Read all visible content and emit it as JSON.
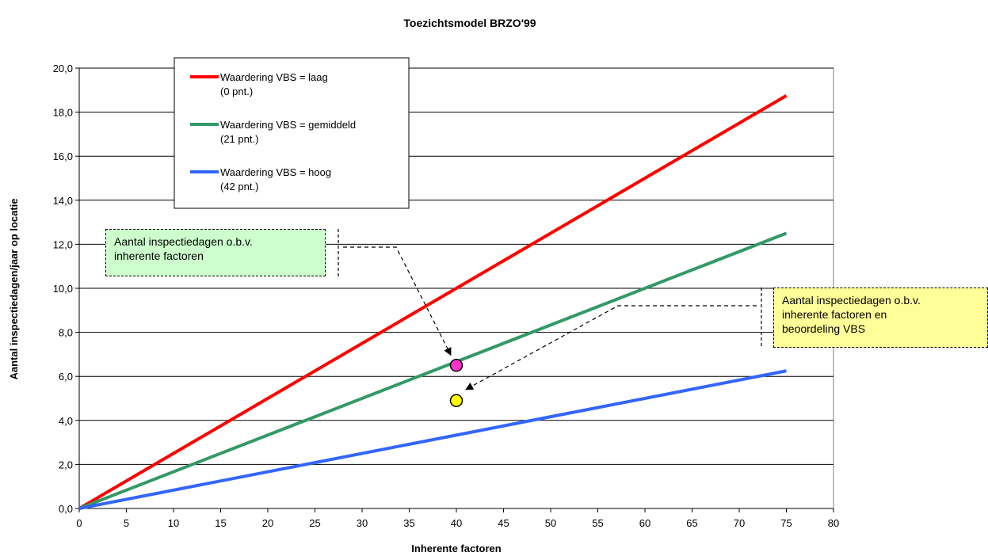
{
  "chart_data": {
    "type": "line",
    "title": "Toezichtsmodel BRZO'99",
    "xlabel": "Inherente factoren",
    "ylabel": "Aantal inspectiedagen/jaar op locatie",
    "xlim": [
      0,
      80
    ],
    "ylim": [
      0,
      20
    ],
    "x_ticks": [
      "0",
      "5",
      "10",
      "15",
      "20",
      "25",
      "30",
      "35",
      "40",
      "45",
      "50",
      "55",
      "60",
      "65",
      "70",
      "75",
      "80"
    ],
    "y_ticks": [
      "0,0",
      "2,0",
      "4,0",
      "6,0",
      "8,0",
      "10,0",
      "12,0",
      "14,0",
      "16,0",
      "18,0",
      "20,0"
    ],
    "grid": "horizontal",
    "legend_position": "top-left",
    "series": [
      {
        "name": "Waardering VBS = laag",
        "name_line2": "(0 pnt.)",
        "color": "#ff0000",
        "x": [
          0,
          75
        ],
        "y": [
          0,
          18.75
        ]
      },
      {
        "name": "Waardering VBS = gemiddeld",
        "name_line2": "(21 pnt.)",
        "color": "#339966",
        "x": [
          0,
          75
        ],
        "y": [
          0,
          12.5
        ]
      },
      {
        "name": "Waardering VBS = hoog",
        "name_line2": "(42 pnt.)",
        "color": "#3366ff",
        "x": [
          0,
          75
        ],
        "y": [
          0,
          6.25
        ]
      }
    ],
    "points": [
      {
        "x": 40,
        "y": 6.5,
        "color": "#ff33cc"
      },
      {
        "x": 40,
        "y": 4.9,
        "color": "#ffff00"
      }
    ],
    "annotations": [
      {
        "text_line1": "Aantal inspectiedagen o.b.v.",
        "text_line2": "inherente factoren",
        "background": "#ccffcc",
        "target": {
          "x": 40,
          "y": 6.5
        }
      },
      {
        "text_line1": "Aantal inspectiedagen o.b.v.",
        "text_line2": "inherente factoren en",
        "text_line3": "beoordeling VBS",
        "background": "#ffff99",
        "target": {
          "x": 40,
          "y": 4.9
        }
      }
    ]
  }
}
